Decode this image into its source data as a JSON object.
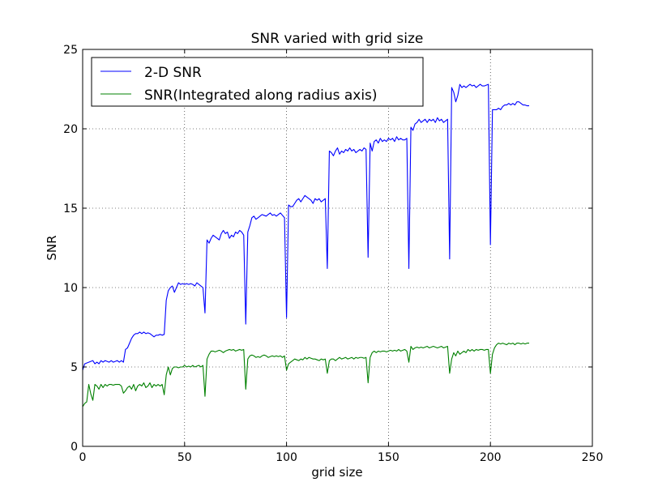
{
  "chart_data": {
    "type": "line",
    "title": "SNR varied with grid size",
    "xlabel": "grid size",
    "ylabel": "SNR",
    "xlim": [
      0,
      250
    ],
    "ylim": [
      0,
      25
    ],
    "xticks": [
      0,
      50,
      100,
      150,
      200,
      250
    ],
    "yticks": [
      0,
      5,
      10,
      15,
      20,
      25
    ],
    "x_tick_labels": [
      "0",
      "50",
      "100",
      "150",
      "200",
      "250"
    ],
    "y_tick_labels": [
      "0",
      "5",
      "10",
      "15",
      "20",
      "25"
    ],
    "grid": true,
    "legend_position": "top-left",
    "series": [
      {
        "name": "2-D SNR",
        "color": "#0000ff",
        "x": [
          0,
          1,
          2,
          3,
          4,
          5,
          6,
          7,
          8,
          9,
          10,
          11,
          12,
          13,
          14,
          15,
          16,
          17,
          18,
          19,
          20,
          21,
          22,
          23,
          24,
          25,
          26,
          27,
          28,
          29,
          30,
          31,
          32,
          33,
          34,
          35,
          36,
          37,
          38,
          39,
          40,
          41,
          42,
          43,
          44,
          45,
          46,
          47,
          48,
          49,
          50,
          51,
          52,
          53,
          54,
          55,
          56,
          57,
          58,
          59,
          60,
          61,
          62,
          63,
          64,
          65,
          66,
          67,
          68,
          69,
          70,
          71,
          72,
          73,
          74,
          75,
          76,
          77,
          78,
          79,
          80,
          81,
          82,
          83,
          84,
          85,
          86,
          87,
          88,
          89,
          90,
          91,
          92,
          93,
          94,
          95,
          96,
          97,
          98,
          99,
          100,
          101,
          102,
          103,
          104,
          105,
          106,
          107,
          108,
          109,
          110,
          111,
          112,
          113,
          114,
          115,
          116,
          117,
          118,
          119,
          120,
          121,
          122,
          123,
          124,
          125,
          126,
          127,
          128,
          129,
          130,
          131,
          132,
          133,
          134,
          135,
          136,
          137,
          138,
          139,
          140,
          141,
          142,
          143,
          144,
          145,
          146,
          147,
          148,
          149,
          150,
          151,
          152,
          153,
          154,
          155,
          156,
          157,
          158,
          159,
          160,
          161,
          162,
          163,
          164,
          165,
          166,
          167,
          168,
          169,
          170,
          171,
          172,
          173,
          174,
          175,
          176,
          177,
          178,
          179,
          180,
          181,
          182,
          183,
          184,
          185,
          186,
          187,
          188,
          189,
          190,
          191,
          192,
          193,
          194,
          195,
          196,
          197,
          198,
          199,
          200,
          201,
          202,
          203,
          204,
          205,
          206,
          207,
          208,
          209,
          210,
          211,
          212,
          213,
          214,
          215,
          216,
          217,
          218,
          219
        ],
        "y": [
          4.8,
          5.2,
          5.25,
          5.3,
          5.35,
          5.4,
          5.2,
          5.3,
          5.2,
          5.4,
          5.3,
          5.4,
          5.35,
          5.3,
          5.4,
          5.3,
          5.35,
          5.4,
          5.3,
          5.4,
          5.3,
          6.1,
          6.2,
          6.5,
          6.8,
          7.0,
          7.1,
          7.1,
          7.2,
          7.1,
          7.2,
          7.1,
          7.15,
          7.1,
          7.0,
          6.9,
          7.0,
          7.0,
          7.05,
          7.0,
          7.05,
          9.2,
          9.8,
          10.0,
          10.1,
          9.7,
          10.0,
          10.3,
          10.2,
          10.25,
          10.2,
          10.25,
          10.2,
          10.25,
          10.2,
          10.1,
          10.3,
          10.2,
          10.1,
          10.0,
          8.4,
          13.0,
          12.8,
          13.1,
          13.3,
          13.2,
          13.1,
          13.0,
          13.4,
          13.6,
          13.4,
          13.5,
          13.1,
          13.3,
          13.2,
          13.5,
          13.4,
          13.6,
          13.5,
          13.3,
          7.7,
          13.5,
          13.9,
          14.4,
          14.5,
          14.3,
          14.4,
          14.5,
          14.6,
          14.55,
          14.5,
          14.6,
          14.7,
          14.55,
          14.6,
          14.5,
          14.6,
          14.7,
          14.55,
          14.4,
          8.1,
          15.2,
          15.1,
          15.1,
          15.3,
          15.5,
          15.6,
          15.4,
          15.6,
          15.8,
          15.7,
          15.6,
          15.5,
          15.3,
          15.6,
          15.5,
          15.6,
          15.4,
          15.5,
          15.6,
          11.2,
          18.6,
          18.5,
          18.3,
          18.6,
          18.8,
          18.4,
          18.6,
          18.5,
          18.7,
          18.6,
          18.8,
          18.6,
          18.7,
          18.5,
          18.6,
          18.7,
          18.6,
          18.8,
          18.7,
          11.9,
          19.1,
          18.6,
          19.2,
          19.3,
          19.1,
          19.4,
          19.2,
          19.3,
          19.2,
          19.4,
          19.3,
          19.4,
          19.2,
          19.5,
          19.3,
          19.4,
          19.3,
          19.3,
          19.4,
          11.2,
          20.1,
          19.9,
          20.3,
          20.4,
          20.6,
          20.4,
          20.5,
          20.6,
          20.4,
          20.6,
          20.5,
          20.6,
          20.4,
          20.7,
          20.5,
          20.6,
          20.4,
          20.5,
          20.6,
          11.8,
          22.6,
          22.3,
          21.7,
          22.1,
          22.8,
          22.6,
          22.7,
          22.6,
          22.7,
          22.8,
          22.7,
          22.75,
          22.6,
          22.7,
          22.8,
          22.7,
          22.7,
          22.75,
          22.8,
          12.7,
          21.2,
          21.2,
          21.2,
          21.3,
          21.2,
          21.4,
          21.5,
          21.5,
          21.6,
          21.5,
          21.6,
          21.5,
          21.7,
          21.7,
          21.6,
          21.5,
          21.5,
          21.45,
          21.45
        ]
      },
      {
        "name": "SNR(Integrated along radius axis)",
        "color": "#008000",
        "x": [
          0,
          1,
          2,
          3,
          4,
          5,
          6,
          7,
          8,
          9,
          10,
          11,
          12,
          13,
          14,
          15,
          16,
          17,
          18,
          19,
          20,
          21,
          22,
          23,
          24,
          25,
          26,
          27,
          28,
          29,
          30,
          31,
          32,
          33,
          34,
          35,
          36,
          37,
          38,
          39,
          40,
          41,
          42,
          43,
          44,
          45,
          46,
          47,
          48,
          49,
          50,
          51,
          52,
          53,
          54,
          55,
          56,
          57,
          58,
          59,
          60,
          61,
          62,
          63,
          64,
          65,
          66,
          67,
          68,
          69,
          70,
          71,
          72,
          73,
          74,
          75,
          76,
          77,
          78,
          79,
          80,
          81,
          82,
          83,
          84,
          85,
          86,
          87,
          88,
          89,
          90,
          91,
          92,
          93,
          94,
          95,
          96,
          97,
          98,
          99,
          100,
          101,
          102,
          103,
          104,
          105,
          106,
          107,
          108,
          109,
          110,
          111,
          112,
          113,
          114,
          115,
          116,
          117,
          118,
          119,
          120,
          121,
          122,
          123,
          124,
          125,
          126,
          127,
          128,
          129,
          130,
          131,
          132,
          133,
          134,
          135,
          136,
          137,
          138,
          139,
          140,
          141,
          142,
          143,
          144,
          145,
          146,
          147,
          148,
          149,
          150,
          151,
          152,
          153,
          154,
          155,
          156,
          157,
          158,
          159,
          160,
          161,
          162,
          163,
          164,
          165,
          166,
          167,
          168,
          169,
          170,
          171,
          172,
          173,
          174,
          175,
          176,
          177,
          178,
          179,
          180,
          181,
          182,
          183,
          184,
          185,
          186,
          187,
          188,
          189,
          190,
          191,
          192,
          193,
          194,
          195,
          196,
          197,
          198,
          199,
          200,
          201,
          202,
          203,
          204,
          205,
          206,
          207,
          208,
          209,
          210,
          211,
          212,
          213,
          214,
          215,
          216,
          217,
          218,
          219
        ],
        "y": [
          2.5,
          2.7,
          2.8,
          3.9,
          3.3,
          2.9,
          3.9,
          3.8,
          3.6,
          3.9,
          3.7,
          3.9,
          3.8,
          3.9,
          3.9,
          3.85,
          3.9,
          3.9,
          3.9,
          3.8,
          3.35,
          3.5,
          3.7,
          3.8,
          3.6,
          3.9,
          3.5,
          3.8,
          3.9,
          3.8,
          4.0,
          3.7,
          3.8,
          4.0,
          3.7,
          3.9,
          3.8,
          3.9,
          3.8,
          3.9,
          3.25,
          4.5,
          5.0,
          4.5,
          4.9,
          5.0,
          5.0,
          4.95,
          5.0,
          5.0,
          5.1,
          5.0,
          5.05,
          5.0,
          5.1,
          5.0,
          5.05,
          5.1,
          5.0,
          5.1,
          3.15,
          5.5,
          5.8,
          6.0,
          6.0,
          5.95,
          6.0,
          6.05,
          6.0,
          5.9,
          6.0,
          6.05,
          6.1,
          6.05,
          6.1,
          6.0,
          6.05,
          6.1,
          6.05,
          6.1,
          3.6,
          5.5,
          5.7,
          5.75,
          5.7,
          5.6,
          5.65,
          5.6,
          5.7,
          5.75,
          5.7,
          5.6,
          5.65,
          5.7,
          5.65,
          5.7,
          5.65,
          5.7,
          5.6,
          5.7,
          4.8,
          5.2,
          5.3,
          5.4,
          5.5,
          5.45,
          5.4,
          5.5,
          5.45,
          5.6,
          5.5,
          5.6,
          5.55,
          5.5,
          5.5,
          5.45,
          5.4,
          5.5,
          5.45,
          5.5,
          4.6,
          5.4,
          5.5,
          5.5,
          5.4,
          5.5,
          5.6,
          5.5,
          5.55,
          5.6,
          5.5,
          5.55,
          5.6,
          5.5,
          5.6,
          5.55,
          5.6,
          5.6,
          5.55,
          5.6,
          4.0,
          5.6,
          5.9,
          6.0,
          5.9,
          6.0,
          5.95,
          6.0,
          6.0,
          5.95,
          6.0,
          6.05,
          6.0,
          6.05,
          6.0,
          6.1,
          6.0,
          6.05,
          6.1,
          6.0,
          5.3,
          6.3,
          6.1,
          6.2,
          6.25,
          6.2,
          6.25,
          6.2,
          6.25,
          6.3,
          6.2,
          6.25,
          6.3,
          6.25,
          6.2,
          6.25,
          6.3,
          6.2,
          6.25,
          6.3,
          4.6,
          5.5,
          5.9,
          5.7,
          6.0,
          5.8,
          5.9,
          6.0,
          5.9,
          6.1,
          6.0,
          6.1,
          6.0,
          6.1,
          6.05,
          6.1,
          6.1,
          6.05,
          6.1,
          6.1,
          4.6,
          5.8,
          6.2,
          6.4,
          6.5,
          6.45,
          6.5,
          6.45,
          6.4,
          6.5,
          6.45,
          6.5,
          6.4,
          6.5,
          6.5,
          6.45,
          6.5,
          6.45,
          6.5,
          6.5
        ]
      }
    ]
  }
}
